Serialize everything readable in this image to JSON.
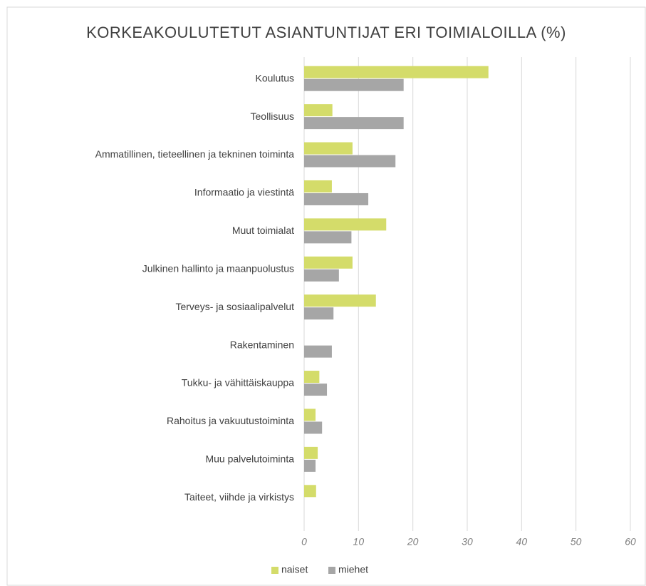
{
  "chart_data": {
    "type": "hbar",
    "title": "KORKEAKOULUTETUT ASIANTUNTIJAT ERI TOIMIALOILLA (%)",
    "categories": [
      "Koulutus",
      "Teollisuus",
      "Ammatillinen, tieteellinen ja tekninen toiminta",
      "Informaatio ja viestintä",
      "Muut toimialat",
      "Julkinen hallinto ja maanpuolustus",
      "Terveys- ja sosiaalipalvelut",
      "Rakentaminen",
      "Tukku- ja vähittäiskauppa",
      "Rahoitus ja vakuutustoiminta",
      "Muu palvelutoiminta",
      "Taiteet, viihde ja virkistys"
    ],
    "series": [
      {
        "name": "naiset",
        "color": "#d4dc6a",
        "values": [
          33.9,
          5.2,
          8.9,
          5.1,
          15.1,
          8.9,
          13.2,
          null,
          2.8,
          2.1,
          2.5,
          2.2
        ]
      },
      {
        "name": "miehet",
        "color": "#a6a6a6",
        "values": [
          18.3,
          18.3,
          16.8,
          11.8,
          8.7,
          6.4,
          5.4,
          5.1,
          4.2,
          3.3,
          2.1,
          null
        ]
      }
    ],
    "xlim": [
      0,
      60
    ],
    "xticks": [
      0,
      10,
      20,
      30,
      40,
      50,
      60
    ],
    "grid": true,
    "legend": "bottom"
  }
}
